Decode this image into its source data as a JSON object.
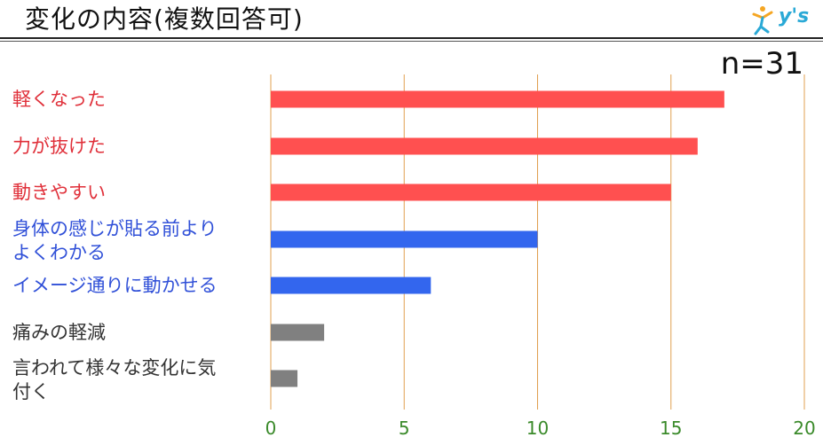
{
  "header": {
    "title": "変化の内容(複数回答可)",
    "logo_text": "y's"
  },
  "sample_size": "n=31",
  "chart_data": {
    "type": "bar",
    "orientation": "horizontal",
    "categories": [
      "軽くなった",
      "力が抜けた",
      "動きやすい",
      "身体の感じが貼る前より\nよくわかる",
      "イメージ通りに動かせる",
      "痛みの軽減",
      "言われて様々な変化に気\n付く"
    ],
    "category_lines": [
      [
        "軽くなった"
      ],
      [
        "力が抜けた"
      ],
      [
        "動きやすい"
      ],
      [
        "身体の感じが貼る前より",
        "よくわかる"
      ],
      [
        "イメージ通りに動かせる"
      ],
      [
        "痛みの軽減"
      ],
      [
        "言われて様々な変化に気",
        "付く"
      ]
    ],
    "values": [
      17,
      16,
      15,
      10,
      6,
      2,
      1
    ],
    "bar_colors": [
      "#ff5050",
      "#ff5050",
      "#ff5050",
      "#3366ee",
      "#3366ee",
      "#808080",
      "#808080"
    ],
    "label_colors": [
      "red",
      "red",
      "red",
      "blue",
      "blue",
      "gray",
      "gray"
    ],
    "xlim": [
      0,
      20
    ],
    "xticks": [
      "0",
      "5",
      "10",
      "15",
      "20"
    ],
    "grid": true,
    "grid_color": "#e0a050",
    "tick_color": "#3a8a2a",
    "xlabel": "",
    "ylabel": ""
  }
}
